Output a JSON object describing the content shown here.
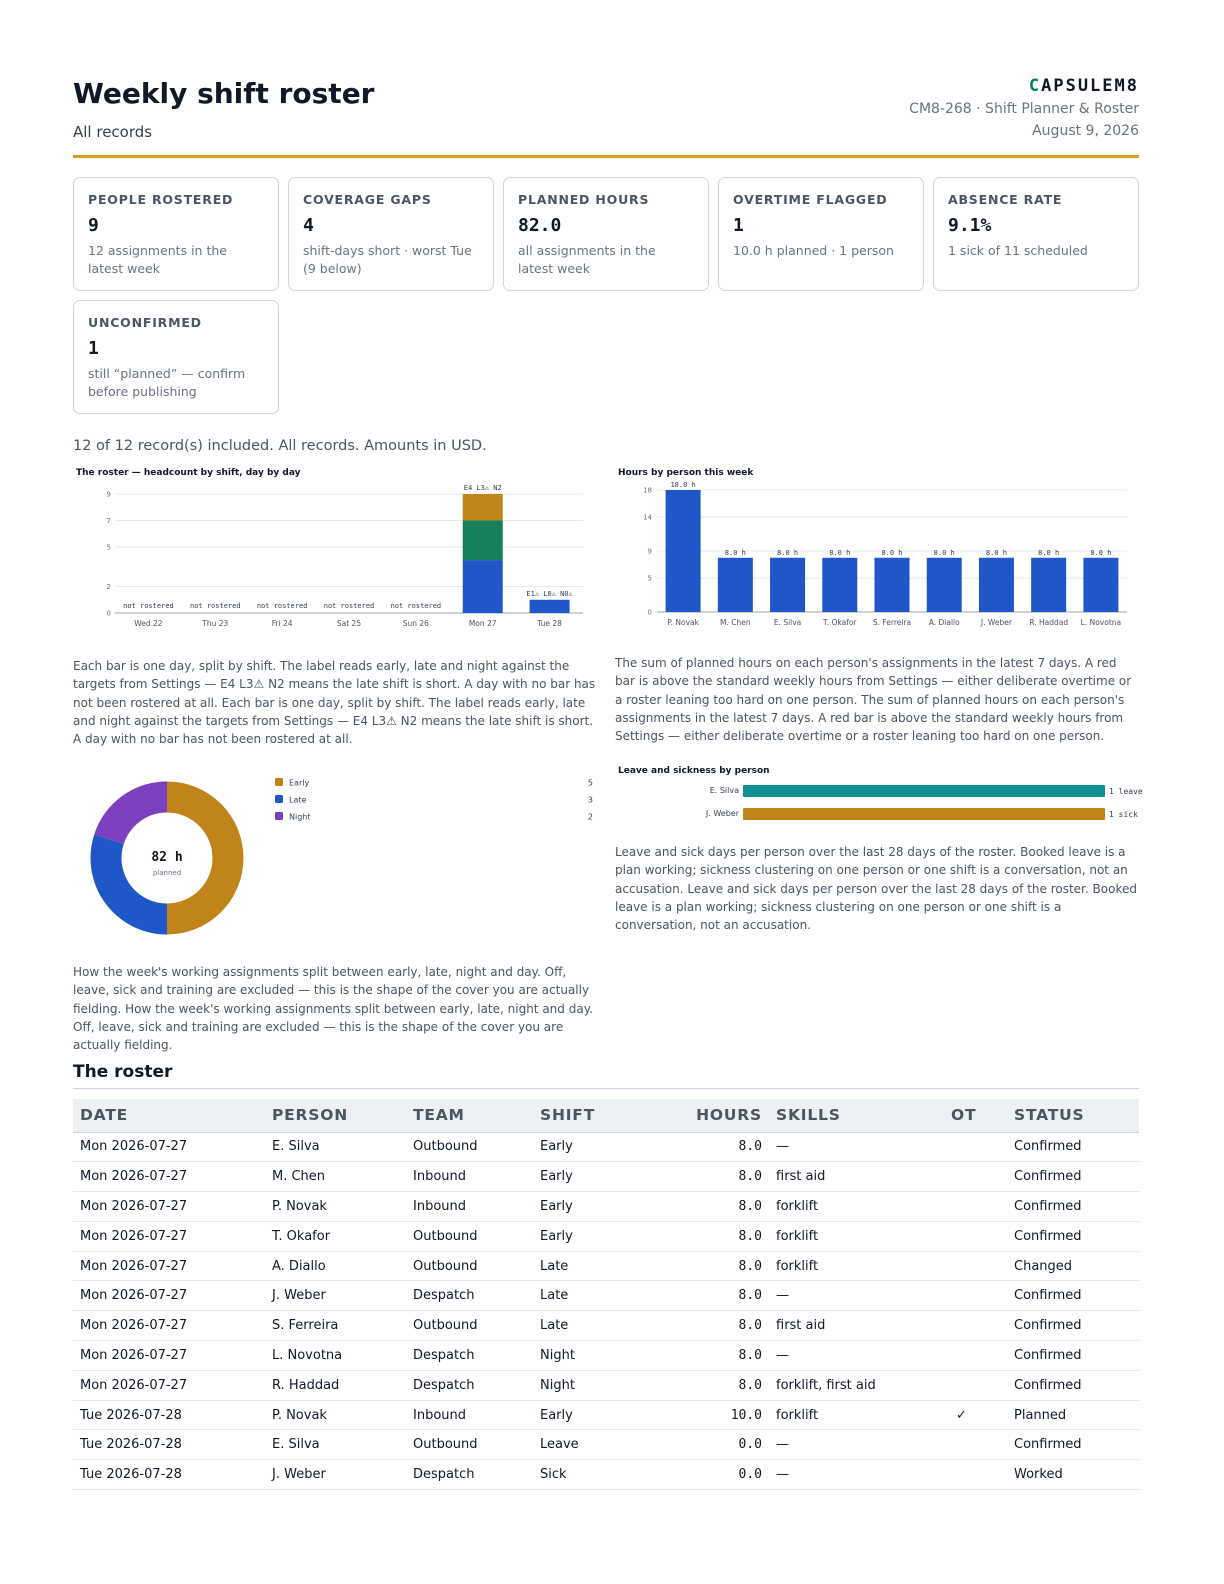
{
  "header": {
    "title": "Weekly shift roster",
    "subtitle": "All records",
    "brand_mark": "C",
    "brand_rest": "APSULEM8",
    "doc_ref": "CM8-268 · Shift Planner & Roster",
    "date": "August 9, 2026"
  },
  "kpis": [
    {
      "label": "PEOPLE ROSTERED",
      "value": "9",
      "note": "12 assignments in the latest week"
    },
    {
      "label": "COVERAGE GAPS",
      "value": "4",
      "note": "shift-days short · worst Tue (9 below)"
    },
    {
      "label": "PLANNED HOURS",
      "value": "82.0",
      "note": "all assignments in the latest week"
    },
    {
      "label": "OVERTIME FLAGGED",
      "value": "1",
      "note": "10.0 h planned · 1 person"
    },
    {
      "label": "ABSENCE RATE",
      "value": "9.1%",
      "note": "1 sick of 11 scheduled"
    },
    {
      "label": "UNCONFIRMED",
      "value": "1",
      "note": "still “planned” — confirm before publishing"
    }
  ],
  "included_note": "12 of 12 record(s) included. All records. Amounts in USD.",
  "colors": {
    "early": "#c0841a",
    "late": "#1f57c8",
    "night": "#7c3fbf",
    "late_roster": "#15805a",
    "hours": "#1f57c8",
    "leave": "#0e8f94",
    "sick": "#c0841a",
    "accent": "#d4a017"
  },
  "chart_data": [
    {
      "type": "bar",
      "stacked": true,
      "title": "The roster — headcount by shift, day by day",
      "categories": [
        "Wed 22",
        "Thu 23",
        "Fri 24",
        "Sat 25",
        "Sun 26",
        "Mon 27",
        "Tue 28"
      ],
      "yticks": [
        "0",
        "2",
        "5",
        "7",
        "9"
      ],
      "ylim": [
        0,
        9
      ],
      "series": [
        {
          "values": [
            0,
            0,
            0,
            0,
            0,
            4,
            1
          ]
        },
        {
          "values": [
            0,
            0,
            0,
            0,
            0,
            3,
            0
          ]
        },
        {
          "values": [
            0,
            0,
            0,
            0,
            0,
            2,
            0
          ]
        }
      ],
      "bar_labels": [
        "not rostered",
        "not rostered",
        "not rostered",
        "not rostered",
        "not rostered",
        "E4 L3⚠ N2",
        "E1⚠ L0⚠ N0⚠"
      ],
      "caption": "Each bar is one day, split by shift. The label reads early, late and night against the targets from Settings — E4 L3⚠ N2 means the late shift is short. A day with no bar has not been rostered at all. Each bar is one day, split by shift. The label reads early, late and night against the targets from Settings — E4 L3⚠ N2 means the late shift is short. A day with no bar has not been rostered at all."
    },
    {
      "type": "bar",
      "title": "Hours by person this week",
      "categories": [
        "P. Novak",
        "M. Chen",
        "E. Silva",
        "T. Okafor",
        "S. Ferreira",
        "A. Diallo",
        "J. Weber",
        "R. Haddad",
        "L. Novotna"
      ],
      "values": [
        18,
        8,
        8,
        8,
        8,
        8,
        8,
        8,
        8
      ],
      "value_labels": [
        "18.0 h",
        "8.0 h",
        "8.0 h",
        "8.0 h",
        "8.0 h",
        "8.0 h",
        "8.0 h",
        "8.0 h",
        "8.0 h"
      ],
      "yticks": [
        "0",
        "5",
        "9",
        "14",
        "18"
      ],
      "ylim": [
        0,
        18
      ],
      "caption": "The sum of planned hours on each person's assignments in the latest 7 days. A red bar is above the standard weekly hours from Settings — either deliberate overtime or a roster leaning too hard on one person. The sum of planned hours on each person's assignments in the latest 7 days. A red bar is above the standard weekly hours from Settings — either deliberate overtime or a roster leaning too hard on one person."
    },
    {
      "type": "pie",
      "series": [
        {
          "name": "Early",
          "value": 5
        },
        {
          "name": "Late",
          "value": 3
        },
        {
          "name": "Night",
          "value": 2
        }
      ],
      "center_value": "82 h",
      "center_label": "planned",
      "caption": "How the week's working assignments split between early, late, night and day. Off, leave, sick and training are excluded — this is the shape of the cover you are actually fielding. How the week's working assignments split between early, late, night and day. Off, leave, sick and training are excluded — this is the shape of the cover you are actually fielding."
    },
    {
      "type": "bar",
      "orientation": "horizontal",
      "title": "Leave and sickness by person",
      "categories": [
        "E. Silva",
        "J. Weber"
      ],
      "values": [
        1,
        1
      ],
      "value_labels": [
        "1 leave",
        "1 sick"
      ],
      "caption": "Leave and sick days per person over the last 28 days of the roster. Booked leave is a plan working; sickness clustering on one person or one shift is a conversation, not an accusation. Leave and sick days per person over the last 28 days of the roster. Booked leave is a plan working; sickness clustering on one person or one shift is a conversation, not an accusation."
    }
  ],
  "table": {
    "title": "The roster",
    "columns": [
      "DATE",
      "PERSON",
      "TEAM",
      "SHIFT",
      "HOURS",
      "SKILLS",
      "OT",
      "STATUS"
    ],
    "rows": [
      [
        "Mon 2026-07-27",
        "E. Silva",
        "Outbound",
        "Early",
        "8.0",
        "—",
        "",
        "Confirmed"
      ],
      [
        "Mon 2026-07-27",
        "M. Chen",
        "Inbound",
        "Early",
        "8.0",
        "first aid",
        "",
        "Confirmed"
      ],
      [
        "Mon 2026-07-27",
        "P. Novak",
        "Inbound",
        "Early",
        "8.0",
        "forklift",
        "",
        "Confirmed"
      ],
      [
        "Mon 2026-07-27",
        "T. Okafor",
        "Outbound",
        "Early",
        "8.0",
        "forklift",
        "",
        "Confirmed"
      ],
      [
        "Mon 2026-07-27",
        "A. Diallo",
        "Outbound",
        "Late",
        "8.0",
        "forklift",
        "",
        "Changed"
      ],
      [
        "Mon 2026-07-27",
        "J. Weber",
        "Despatch",
        "Late",
        "8.0",
        "—",
        "",
        "Confirmed"
      ],
      [
        "Mon 2026-07-27",
        "S. Ferreira",
        "Outbound",
        "Late",
        "8.0",
        "first aid",
        "",
        "Confirmed"
      ],
      [
        "Mon 2026-07-27",
        "L. Novotna",
        "Despatch",
        "Night",
        "8.0",
        "—",
        "",
        "Confirmed"
      ],
      [
        "Mon 2026-07-27",
        "R. Haddad",
        "Despatch",
        "Night",
        "8.0",
        "forklift, first aid",
        "",
        "Confirmed"
      ],
      [
        "Tue 2026-07-28",
        "P. Novak",
        "Inbound",
        "Early",
        "10.0",
        "forklift",
        "✓",
        "Planned"
      ],
      [
        "Tue 2026-07-28",
        "E. Silva",
        "Outbound",
        "Leave",
        "0.0",
        "—",
        "",
        "Confirmed"
      ],
      [
        "Tue 2026-07-28",
        "J. Weber",
        "Despatch",
        "Sick",
        "0.0",
        "—",
        "",
        "Worked"
      ]
    ]
  }
}
